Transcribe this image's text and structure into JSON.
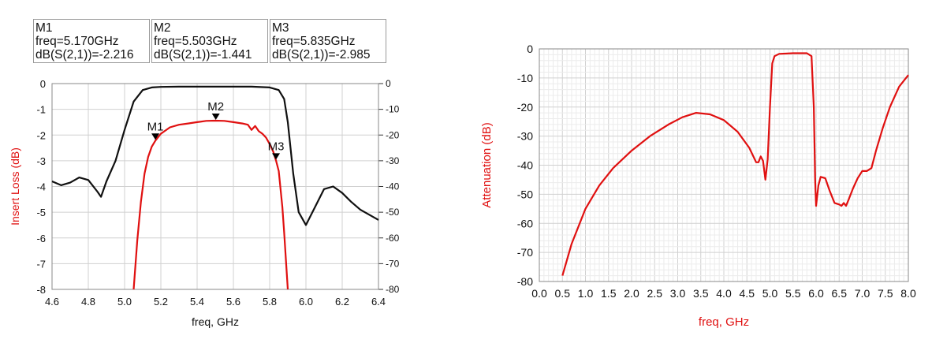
{
  "marker_table": [
    {
      "name": "M1",
      "freq_text": "freq=5.170GHz",
      "value_text": "dB(S(2,1))=-2.216"
    },
    {
      "name": "M2",
      "freq_text": "freq=5.503GHz",
      "value_text": "dB(S(2,1))=-1.441"
    },
    {
      "name": "M3",
      "freq_text": "freq=5.835GHz",
      "value_text": "dB(S(2,1))=-2.985"
    }
  ],
  "colors": {
    "insertion": "#e01010",
    "reference": "#101010",
    "grid": "#d0d0d0",
    "axis": "#333333"
  },
  "chart_data": [
    {
      "type": "line",
      "title": "",
      "xlabel": "freq, GHz",
      "ylabel": "Insert Loss (dB)",
      "xlim": [
        4.6,
        6.4
      ],
      "ylim": [
        -8,
        0
      ],
      "y2lim": [
        -80,
        0
      ],
      "x_ticks": [
        "4.6",
        "4.8",
        "5.0",
        "5.2",
        "5.4",
        "5.6",
        "5.8",
        "6.0",
        "6.2",
        "6.4"
      ],
      "y_ticks": [
        "0",
        "-1",
        "-2",
        "-3",
        "-4",
        "-5",
        "-6",
        "-7",
        "-8"
      ],
      "y2_ticks": [
        "0",
        "-10",
        "-20",
        "-30",
        "-40",
        "-50",
        "-60",
        "-70",
        "-80"
      ],
      "grid": true,
      "series": [
        {
          "axis": "left",
          "color": "#e01010",
          "x": [
            5.05,
            5.07,
            5.09,
            5.11,
            5.13,
            5.15,
            5.17,
            5.2,
            5.25,
            5.3,
            5.35,
            5.4,
            5.45,
            5.5,
            5.55,
            5.6,
            5.65,
            5.68,
            5.7,
            5.72,
            5.74,
            5.76,
            5.78,
            5.8,
            5.82,
            5.835,
            5.85,
            5.87,
            5.88,
            5.89,
            5.9
          ],
          "y": [
            -8,
            -6.1,
            -4.6,
            -3.5,
            -2.85,
            -2.45,
            -2.216,
            -1.95,
            -1.7,
            -1.6,
            -1.55,
            -1.5,
            -1.45,
            -1.441,
            -1.45,
            -1.5,
            -1.55,
            -1.6,
            -1.8,
            -1.65,
            -1.85,
            -1.95,
            -2.1,
            -2.35,
            -2.65,
            -2.985,
            -3.4,
            -4.8,
            -5.8,
            -6.9,
            -8
          ]
        },
        {
          "axis": "right",
          "color": "#101010",
          "x": [
            4.6,
            4.65,
            4.7,
            4.75,
            4.8,
            4.85,
            4.87,
            4.9,
            4.95,
            5.0,
            5.05,
            5.1,
            5.15,
            5.2,
            5.3,
            5.4,
            5.5,
            5.6,
            5.7,
            5.8,
            5.85,
            5.88,
            5.9,
            5.93,
            5.96,
            6.0,
            6.05,
            6.1,
            6.15,
            6.2,
            6.25,
            6.3,
            6.35,
            6.4
          ],
          "y": [
            -38,
            -39.5,
            -38.5,
            -36.5,
            -37.5,
            -42,
            -44,
            -38,
            -30,
            -18,
            -7,
            -2.5,
            -1.5,
            -1.3,
            -1.2,
            -1.2,
            -1.2,
            -1.2,
            -1.2,
            -1.5,
            -2.5,
            -6,
            -15,
            -35,
            -50,
            -55,
            -48,
            -41,
            -40,
            -42.5,
            -46,
            -49,
            -51,
            -53
          ]
        }
      ],
      "markers": [
        {
          "label": "M1",
          "x": 5.17,
          "y": -2.216
        },
        {
          "label": "M2",
          "x": 5.503,
          "y": -1.441
        },
        {
          "label": "M3",
          "x": 5.835,
          "y": -2.985
        }
      ]
    },
    {
      "type": "line",
      "title": "",
      "xlabel": "freq, GHz",
      "ylabel": "Attenuation (dB)",
      "xlim": [
        0,
        8
      ],
      "ylim": [
        -80,
        0
      ],
      "x_ticks": [
        "0.0",
        "0.5",
        "1.0",
        "1.5",
        "2.0",
        "2.5",
        "3.0",
        "3.5",
        "4.0",
        "4.5",
        "5.0",
        "5.5",
        "6.0",
        "6.5",
        "7.0",
        "7.5",
        "8.0"
      ],
      "y_ticks": [
        "0",
        "-10",
        "-20",
        "-30",
        "-40",
        "-50",
        "-60",
        "-70",
        "-80"
      ],
      "grid": true,
      "series": [
        {
          "color": "#e01010",
          "x": [
            0.5,
            0.7,
            1.0,
            1.3,
            1.6,
            2.0,
            2.4,
            2.8,
            3.1,
            3.4,
            3.7,
            4.0,
            4.3,
            4.55,
            4.7,
            4.75,
            4.8,
            4.85,
            4.9,
            4.95,
            5.0,
            5.05,
            5.1,
            5.2,
            5.5,
            5.8,
            5.9,
            5.95,
            5.98,
            6.0,
            6.05,
            6.1,
            6.2,
            6.3,
            6.4,
            6.5,
            6.55,
            6.6,
            6.65,
            6.7,
            6.8,
            6.9,
            7.0,
            7.1,
            7.2,
            7.3,
            7.45,
            7.6,
            7.8,
            8.0
          ],
          "y": [
            -78,
            -67,
            -55,
            -47,
            -41,
            -35,
            -30,
            -26,
            -23.5,
            -22,
            -22.5,
            -24.5,
            -28.5,
            -34,
            -39,
            -39,
            -37,
            -38.5,
            -45,
            -38,
            -20,
            -5,
            -2.5,
            -1.7,
            -1.5,
            -1.5,
            -2.5,
            -20,
            -45,
            -54,
            -47,
            -44,
            -44.5,
            -49,
            -53,
            -53.5,
            -54,
            -53,
            -54,
            -52,
            -48,
            -44.5,
            -42,
            -42,
            -41,
            -35,
            -27,
            -20,
            -13,
            -9
          ]
        }
      ]
    }
  ]
}
